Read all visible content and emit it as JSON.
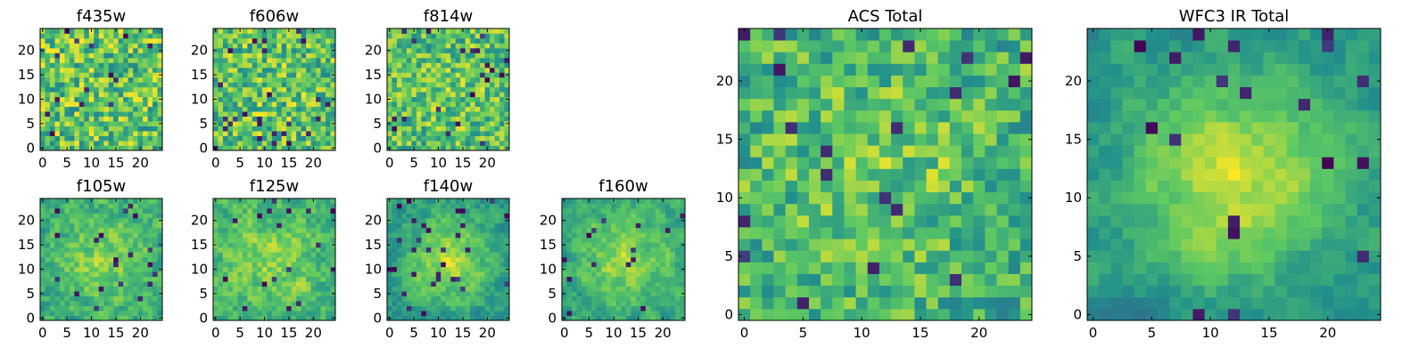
{
  "figure": {
    "colormap": "viridis",
    "colors": [
      "#440154",
      "#3b528b",
      "#21918c",
      "#5ec962",
      "#fde725"
    ]
  },
  "chart_data": [
    {
      "type": "heatmap",
      "title": "f435w",
      "grid": 25,
      "xticks": [
        0,
        5,
        10,
        15,
        20
      ],
      "yticks": [
        0,
        5,
        10,
        15,
        20
      ],
      "xlim": [
        -0.5,
        24.5
      ],
      "ylim": [
        -0.5,
        24.5
      ],
      "smooth": 0.0,
      "center": 0.0,
      "floor": 0.45,
      "seed": 11
    },
    {
      "type": "heatmap",
      "title": "f606w",
      "grid": 25,
      "xticks": [
        0,
        5,
        10,
        15,
        20
      ],
      "yticks": [
        0,
        5,
        10,
        15,
        20
      ],
      "xlim": [
        -0.5,
        24.5
      ],
      "ylim": [
        -0.5,
        24.5
      ],
      "smooth": 0.0,
      "center": 0.1,
      "floor": 0.45,
      "seed": 23
    },
    {
      "type": "heatmap",
      "title": "f814w",
      "grid": 25,
      "xticks": [
        0,
        5,
        10,
        15,
        20
      ],
      "yticks": [
        0,
        5,
        10,
        15,
        20
      ],
      "xlim": [
        -0.5,
        24.5
      ],
      "ylim": [
        -0.5,
        24.5
      ],
      "smooth": 0.1,
      "center": 0.1,
      "floor": 0.45,
      "seed": 37
    },
    {
      "type": "heatmap",
      "title": "f105w",
      "grid": 25,
      "xticks": [
        0,
        5,
        10,
        15,
        20
      ],
      "yticks": [
        0,
        5,
        10,
        15,
        20
      ],
      "xlim": [
        -0.5,
        24.5
      ],
      "ylim": [
        -0.5,
        24.5
      ],
      "smooth": 0.5,
      "center": 0.4,
      "floor": 0.4,
      "seed": 41
    },
    {
      "type": "heatmap",
      "title": "f125w",
      "grid": 25,
      "xticks": [
        0,
        5,
        10,
        15,
        20
      ],
      "yticks": [
        0,
        5,
        10,
        15,
        20
      ],
      "xlim": [
        -0.5,
        24.5
      ],
      "ylim": [
        -0.5,
        24.5
      ],
      "smooth": 0.5,
      "center": 0.3,
      "floor": 0.45,
      "seed": 53
    },
    {
      "type": "heatmap",
      "title": "f140w",
      "grid": 25,
      "xticks": [
        0,
        5,
        10,
        15,
        20
      ],
      "yticks": [
        0,
        5,
        10,
        15,
        20
      ],
      "xlim": [
        -0.5,
        24.5
      ],
      "ylim": [
        -0.5,
        24.5
      ],
      "smooth": 0.6,
      "center": 0.6,
      "floor": 0.35,
      "seed": 67
    },
    {
      "type": "heatmap",
      "title": "f160w",
      "grid": 25,
      "xticks": [
        0,
        5,
        10,
        15,
        20
      ],
      "yticks": [
        0,
        5,
        10,
        15,
        20
      ],
      "xlim": [
        -0.5,
        24.5
      ],
      "ylim": [
        -0.5,
        24.5
      ],
      "smooth": 0.6,
      "center": 0.5,
      "floor": 0.4,
      "seed": 79
    },
    {
      "type": "heatmap",
      "title": "ACS Total",
      "grid": 25,
      "xticks": [
        0,
        5,
        10,
        15,
        20
      ],
      "yticks": [
        0,
        5,
        10,
        15,
        20
      ],
      "xlim": [
        -0.5,
        24.5
      ],
      "ylim": [
        -0.5,
        24.5
      ],
      "smooth": 0.2,
      "center": 0.25,
      "floor": 0.4,
      "seed": 83
    },
    {
      "type": "heatmap",
      "title": "WFC3 IR Total",
      "grid": 25,
      "xticks": [
        0,
        5,
        10,
        15,
        20
      ],
      "yticks": [
        0,
        5,
        10,
        15,
        20
      ],
      "xlim": [
        -0.5,
        24.5
      ],
      "ylim": [
        -0.5,
        24.5
      ],
      "smooth": 0.7,
      "center": 0.7,
      "floor": 0.35,
      "seed": 97
    }
  ]
}
